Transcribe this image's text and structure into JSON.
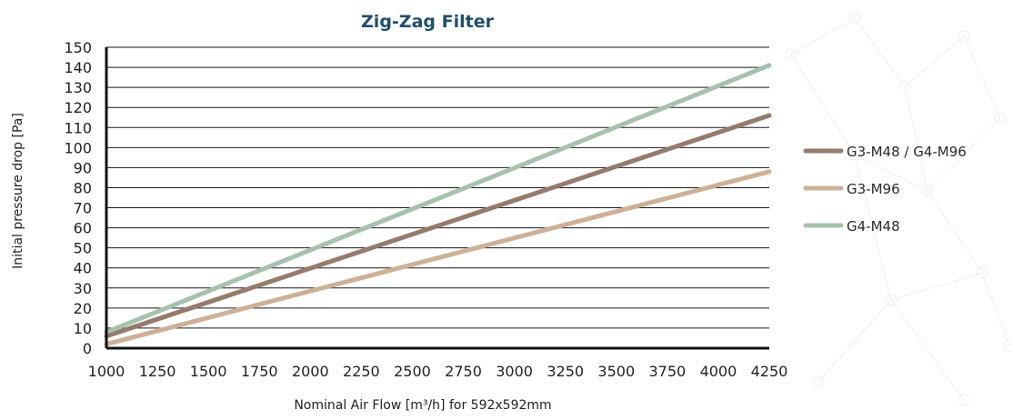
{
  "chart_data": {
    "type": "line",
    "title": "Zig-Zag Filter",
    "xlabel": "Nominal Air Flow [m³/h] for 592x592mm",
    "ylabel": "Initial pressure drop [Pa]",
    "xlim": [
      1000,
      4250
    ],
    "ylim": [
      0,
      150
    ],
    "xticks": [
      1000,
      1250,
      1500,
      1750,
      2000,
      2250,
      2500,
      2750,
      3000,
      3250,
      3500,
      3750,
      4000,
      4250
    ],
    "yticks": [
      0,
      10,
      20,
      30,
      40,
      50,
      60,
      70,
      80,
      90,
      100,
      110,
      120,
      130,
      140,
      150
    ],
    "grid": "horizontal",
    "legend_position": "right",
    "series": [
      {
        "name": "G3-M48  /  G4-M96",
        "color": "#957b6c",
        "x": [
          1000,
          4250
        ],
        "y": [
          6,
          116
        ]
      },
      {
        "name": "G3-M96",
        "color": "#cdb096",
        "x": [
          1000,
          4250
        ],
        "y": [
          2,
          88
        ]
      },
      {
        "name": "G4-M48",
        "color": "#a6c2ae",
        "x": [
          1000,
          4250
        ],
        "y": [
          8,
          141
        ]
      }
    ]
  }
}
